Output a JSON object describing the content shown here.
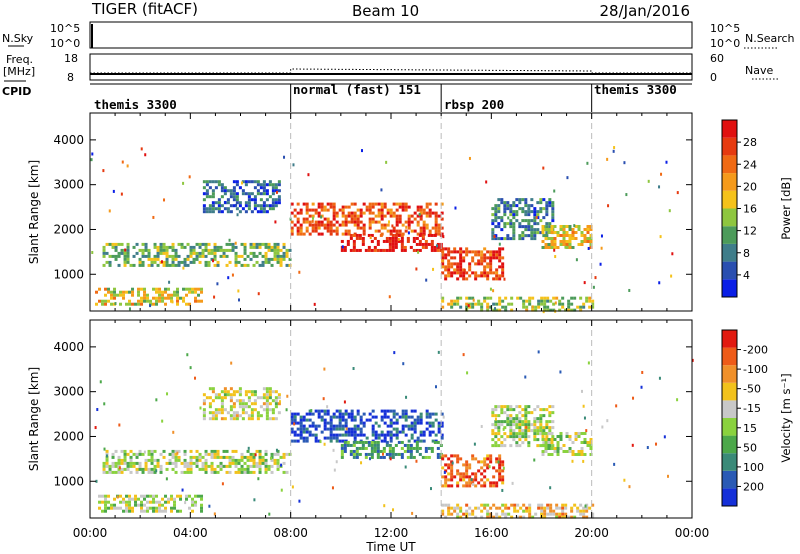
{
  "header": {
    "radar": "TIGER (fitACF)",
    "beam": "Beam 10",
    "date": "28/Jan/2016"
  },
  "strip": {
    "nsky_label": "N.Sky",
    "nsky_ticks": [
      "10^5",
      "10^0"
    ],
    "nsearch_label": "N.Search",
    "freq_label_1": "Freq.",
    "freq_label_2": "[MHz]",
    "freq_ticks": [
      "18",
      "8"
    ],
    "nave_ticks": [
      "60",
      "0"
    ],
    "nave_label": "Nave",
    "cpid_label": "CPID"
  },
  "modes": [
    {
      "name": "themis 3300",
      "start_h": 0,
      "end_h": 8
    },
    {
      "name": "normal (fast) 151",
      "start_h": 8,
      "end_h": 14
    },
    {
      "name": "rbsp 200",
      "start_h": 14,
      "end_h": 20
    },
    {
      "name": "themis 3300",
      "start_h": 20,
      "end_h": 24
    }
  ],
  "axes": {
    "xlabel": "Time UT",
    "xticks": [
      "00:00",
      "04:00",
      "08:00",
      "12:00",
      "16:00",
      "20:00",
      "00:00"
    ],
    "ylabel": "Slant Range [km]",
    "yticks": [
      1000,
      2000,
      3000,
      4000
    ],
    "ylim": [
      180,
      4600
    ]
  },
  "colorbars": {
    "power": {
      "label": "Power [dB]",
      "ticks": [
        "4",
        "8",
        "12",
        "16",
        "20",
        "24",
        "28"
      ],
      "colors": [
        "#0a1fe6",
        "#2a4fb0",
        "#3f7d8a",
        "#4c9b5a",
        "#8ec63f",
        "#f5c21b",
        "#f59a1b",
        "#f06a14",
        "#e63a10",
        "#e01010"
      ]
    },
    "velocity": {
      "label": "Velocity [m s⁻¹]",
      "ticks": [
        "200",
        "100",
        "50",
        "15",
        "-15",
        "-50",
        "-100",
        "-200"
      ],
      "colors": [
        "#1530d8",
        "#2a5ab5",
        "#3a8a78",
        "#4ca84a",
        "#8ad23e",
        "#c8c8c8",
        "#f2c21c",
        "#f0902a",
        "#ee5b18",
        "#e21a10"
      ]
    }
  },
  "chart_data": [
    {
      "type": "heatmap",
      "name": "power",
      "x_range_h": [
        0,
        24
      ],
      "y_range_km": [
        180,
        4600
      ],
      "bands": [
        {
          "t0": 0.2,
          "t1": 4.5,
          "r0": 300,
          "r1": 700,
          "level": 0.55
        },
        {
          "t0": 0.5,
          "t1": 8.0,
          "r0": 1200,
          "r1": 1700,
          "level": 0.4
        },
        {
          "t0": 4.5,
          "t1": 7.5,
          "r0": 2400,
          "r1": 3100,
          "level": 0.2
        },
        {
          "t0": 8.0,
          "t1": 14.0,
          "r0": 1900,
          "r1": 2600,
          "level": 0.8
        },
        {
          "t0": 10.0,
          "t1": 14.0,
          "r0": 1500,
          "r1": 1900,
          "level": 0.95
        },
        {
          "t0": 14.0,
          "t1": 16.5,
          "r0": 900,
          "r1": 1600,
          "level": 0.85
        },
        {
          "t0": 16.0,
          "t1": 18.5,
          "r0": 1800,
          "r1": 2700,
          "level": 0.25
        },
        {
          "t0": 18.0,
          "t1": 20.0,
          "r0": 1600,
          "r1": 2100,
          "level": 0.55
        },
        {
          "t0": 14.0,
          "t1": 20.0,
          "r0": 200,
          "r1": 500,
          "level": 0.45
        }
      ]
    },
    {
      "type": "heatmap",
      "name": "velocity",
      "x_range_h": [
        0,
        24
      ],
      "y_range_km": [
        180,
        4600
      ],
      "bands": [
        {
          "t0": 0.2,
          "t1": 4.5,
          "r0": 300,
          "r1": 700,
          "level": 0.5
        },
        {
          "t0": 0.5,
          "t1": 8.0,
          "r0": 1200,
          "r1": 1700,
          "level": 0.5
        },
        {
          "t0": 4.5,
          "t1": 7.5,
          "r0": 2400,
          "r1": 3100,
          "level": 0.55
        },
        {
          "t0": 8.0,
          "t1": 14.0,
          "r0": 1900,
          "r1": 2600,
          "level": 0.1
        },
        {
          "t0": 10.0,
          "t1": 14.0,
          "r0": 1500,
          "r1": 1900,
          "level": 0.3
        },
        {
          "t0": 14.0,
          "t1": 16.5,
          "r0": 900,
          "r1": 1600,
          "level": 0.85
        },
        {
          "t0": 16.0,
          "t1": 18.5,
          "r0": 1800,
          "r1": 2700,
          "level": 0.5
        },
        {
          "t0": 18.0,
          "t1": 20.0,
          "r0": 1600,
          "r1": 2100,
          "level": 0.5
        },
        {
          "t0": 14.0,
          "t1": 20.0,
          "r0": 200,
          "r1": 500,
          "level": 0.65
        }
      ]
    }
  ]
}
